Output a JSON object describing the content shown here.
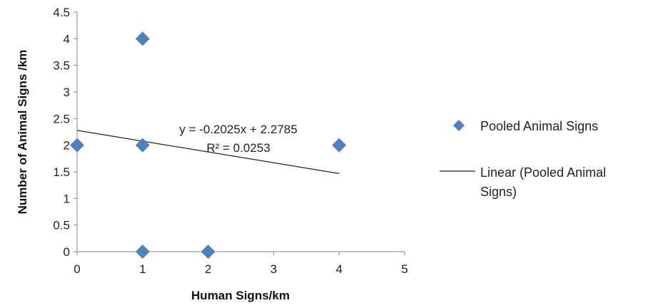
{
  "chart_data": {
    "type": "scatter",
    "xlabel": "Human Signs/km",
    "ylabel": "Number of Animal Signs /km",
    "xlim": [
      0,
      5
    ],
    "ylim": [
      0,
      4.5
    ],
    "x_ticks": [
      "0",
      "1",
      "2",
      "3",
      "4",
      "5"
    ],
    "y_ticks": [
      "0",
      "0.5",
      "1",
      "1.5",
      "2",
      "2.5",
      "3",
      "3.5",
      "4",
      "4.5"
    ],
    "grid": false,
    "legend_position": "right",
    "series": [
      {
        "name": "Pooled Animal Signs",
        "marker": "diamond",
        "color": "#4F81BD",
        "points": [
          {
            "x": 0,
            "y": 2
          },
          {
            "x": 1,
            "y": 4
          },
          {
            "x": 1,
            "y": 2
          },
          {
            "x": 1,
            "y": 0
          },
          {
            "x": 2,
            "y": 0
          },
          {
            "x": 4,
            "y": 2
          }
        ]
      }
    ],
    "trendline": {
      "name": "Linear (Pooled Animal Signs)",
      "slope": -0.2025,
      "intercept": 2.2785,
      "x_range": [
        0,
        4
      ],
      "color": "#222222",
      "equation_label": "y = -0.2025x + 2.2785",
      "r2_label": "R² = 0.0253"
    },
    "legend": {
      "marker_label": "Pooled Animal Signs",
      "line_label_1": "Linear (Pooled Animal",
      "line_label_2": "Signs)"
    }
  }
}
